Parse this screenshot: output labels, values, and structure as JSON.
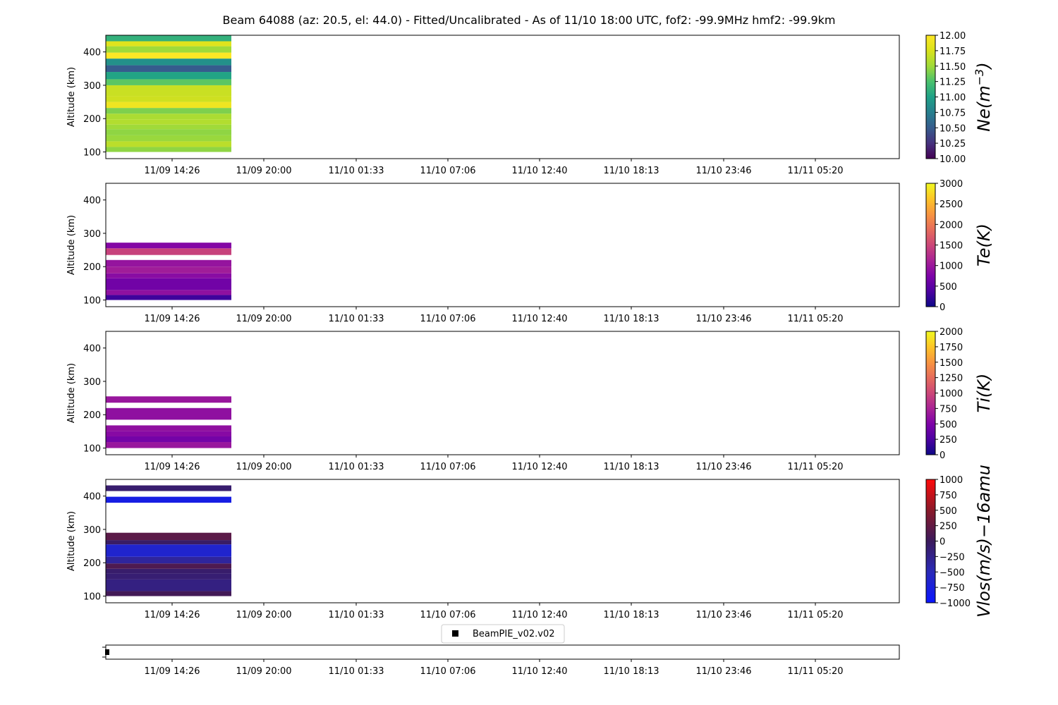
{
  "title": "Beam 64088 (az: 20.5, el: 44.0) - Fitted/Uncalibrated - As of 11/10 18:00 UTC, fof2: -99.9MHz  hmf2: -99.9km",
  "x_tick_labels": [
    "11/09 14:26",
    "11/09 20:00",
    "11/10 01:33",
    "11/10 07:06",
    "11/10 12:40",
    "11/10 18:13",
    "11/10 23:46",
    "11/11 05:20"
  ],
  "legend": {
    "label": "BeamPIE_v02.v02"
  },
  "chart_data": [
    {
      "type": "heatmap",
      "ylabel": "Altitude (km)",
      "ylim": [
        80,
        450
      ],
      "y_ticks": [
        100,
        200,
        300,
        400
      ],
      "colorbar": {
        "label": "Ne(m^{-3})",
        "label_main": "Ne(m",
        "label_sup": "−3",
        "label_close": ")",
        "colormap": "viridis",
        "range": [
          10,
          12
        ],
        "ticks": [
          "10.00",
          "10.25",
          "10.50",
          "10.75",
          "11.00",
          "11.25",
          "11.50",
          "11.75",
          "12.00"
        ]
      },
      "rows": [
        {
          "alt": [
            100,
            115
          ],
          "value": 11.45
        },
        {
          "alt": [
            115,
            132
          ],
          "value": 11.62
        },
        {
          "alt": [
            132,
            150
          ],
          "value": 11.48
        },
        {
          "alt": [
            150,
            168
          ],
          "value": 11.45
        },
        {
          "alt": [
            168,
            182
          ],
          "value": 11.5
        },
        {
          "alt": [
            182,
            198
          ],
          "value": 11.58
        },
        {
          "alt": [
            198,
            215
          ],
          "value": 11.55
        },
        {
          "alt": [
            215,
            232
          ],
          "value": 11.4
        },
        {
          "alt": [
            232,
            250
          ],
          "value": 11.9
        },
        {
          "alt": [
            250,
            268
          ],
          "value": 11.7
        },
        {
          "alt": [
            268,
            300
          ],
          "value": 11.68
        },
        {
          "alt": [
            300,
            318
          ],
          "value": 11.3
        },
        {
          "alt": [
            318,
            340
          ],
          "value": 11.02
        },
        {
          "alt": [
            340,
            360
          ],
          "value": 10.5
        },
        {
          "alt": [
            360,
            380
          ],
          "value": 10.88
        },
        {
          "alt": [
            380,
            398
          ],
          "value": 12.0
        },
        {
          "alt": [
            398,
            417
          ],
          "value": 11.5
        },
        {
          "alt": [
            417,
            432
          ],
          "value": 11.8
        },
        {
          "alt": [
            432,
            450
          ],
          "value": 11.12
        }
      ]
    },
    {
      "type": "heatmap",
      "ylabel": "Altitude (km)",
      "ylim": [
        80,
        450
      ],
      "y_ticks": [
        100,
        200,
        300,
        400
      ],
      "colorbar": {
        "label": "Te(K)",
        "label_main": "Te(K)",
        "label_sup": "",
        "label_close": "",
        "colormap": "plasma",
        "range": [
          0,
          3000
        ],
        "ticks": [
          "0",
          "500",
          "1000",
          "1500",
          "2000",
          "2500",
          "3000"
        ]
      },
      "rows": [
        {
          "alt": [
            100,
            115
          ],
          "value": 300
        },
        {
          "alt": [
            115,
            130
          ],
          "value": 900
        },
        {
          "alt": [
            130,
            165
          ],
          "value": 650
        },
        {
          "alt": [
            165,
            180
          ],
          "value": 850
        },
        {
          "alt": [
            180,
            200
          ],
          "value": 1050
        },
        {
          "alt": [
            200,
            220
          ],
          "value": 950
        },
        {
          "alt": [
            235,
            255
          ],
          "value": 1450
        },
        {
          "alt": [
            255,
            272
          ],
          "value": 800
        }
      ]
    },
    {
      "type": "heatmap",
      "ylabel": "Altitude (km)",
      "ylim": [
        80,
        450
      ],
      "y_ticks": [
        100,
        200,
        300,
        400
      ],
      "colorbar": {
        "label": "Ti(K)",
        "label_main": "Ti(K)",
        "label_sup": "",
        "label_close": "",
        "colormap": "plasma",
        "range": [
          0,
          2000
        ],
        "ticks": [
          "0",
          "250",
          "500",
          "750",
          "1000",
          "1250",
          "1500",
          "1750",
          "2000"
        ]
      },
      "rows": [
        {
          "alt": [
            100,
            118
          ],
          "value": 650
        },
        {
          "alt": [
            118,
            135
          ],
          "value": 450
        },
        {
          "alt": [
            135,
            150
          ],
          "value": 550
        },
        {
          "alt": [
            150,
            168
          ],
          "value": 600
        },
        {
          "alt": [
            185,
            220
          ],
          "value": 600
        },
        {
          "alt": [
            236,
            255
          ],
          "value": 650
        }
      ]
    },
    {
      "type": "heatmap",
      "ylabel": "Altitude (km)",
      "ylim": [
        80,
        450
      ],
      "y_ticks": [
        100,
        200,
        300,
        400
      ],
      "colorbar": {
        "label": "Vlos(m/s)-16amu",
        "label_main": "Vlos(m/s)−16amu",
        "label_sup": "",
        "label_close": "",
        "colormap": "bwr_dark",
        "range": [
          -1000,
          1000
        ],
        "ticks": [
          "−1000",
          "−750",
          "−500",
          "−250",
          "0",
          "250",
          "500",
          "750",
          "1000"
        ]
      },
      "rows": [
        {
          "alt": [
            100,
            115
          ],
          "value": 50
        },
        {
          "alt": [
            115,
            150
          ],
          "value": -200
        },
        {
          "alt": [
            150,
            168
          ],
          "value": -120
        },
        {
          "alt": [
            168,
            182
          ],
          "value": -80
        },
        {
          "alt": [
            182,
            198
          ],
          "value": 120
        },
        {
          "alt": [
            198,
            218
          ],
          "value": -350
        },
        {
          "alt": [
            218,
            255
          ],
          "value": -650
        },
        {
          "alt": [
            255,
            268
          ],
          "value": -50
        },
        {
          "alt": [
            268,
            290
          ],
          "value": 200
        },
        {
          "alt": [
            380,
            398
          ],
          "value": -800
        },
        {
          "alt": [
            415,
            432
          ],
          "value": -100
        }
      ]
    }
  ]
}
